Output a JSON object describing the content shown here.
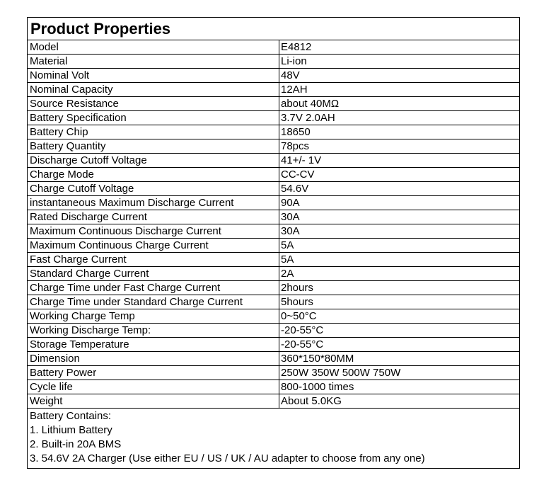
{
  "title": "Product Properties",
  "rows": [
    [
      "Model",
      "E4812"
    ],
    [
      "Material",
      "Li-ion"
    ],
    [
      "Nominal Volt",
      "48V"
    ],
    [
      "Nominal Capacity",
      "12AH"
    ],
    [
      "Source Resistance",
      "about 40MΩ"
    ],
    [
      "Battery Specification",
      "3.7V 2.0AH"
    ],
    [
      "Battery Chip",
      "18650"
    ],
    [
      "Battery Quantity",
      "78pcs"
    ],
    [
      "Discharge Cutoff Voltage",
      "41+/- 1V"
    ],
    [
      "Charge Mode",
      "CC-CV"
    ],
    [
      "Charge Cutoff Voltage",
      "54.6V"
    ],
    [
      "instantaneous Maximum Discharge Current",
      "90A"
    ],
    [
      "Rated Discharge Current",
      "30A"
    ],
    [
      "Maximum Continuous Discharge Current",
      "30A"
    ],
    [
      "Maximum Continuous Charge Current",
      "5A"
    ],
    [
      "Fast Charge Current",
      "5A"
    ],
    [
      "Standard Charge Current",
      "2A"
    ],
    [
      "Charge Time under Fast Charge Current",
      "2hours"
    ],
    [
      "Charge Time under Standard Charge Current",
      "5hours"
    ],
    [
      "Working Charge Temp",
      "0~50°C"
    ],
    [
      "Working Discharge Temp:",
      "-20-55°C"
    ],
    [
      "Storage Temperature",
      "-20-55°C"
    ],
    [
      "Dimension",
      "360*150*80MM"
    ],
    [
      "Battery Power",
      "250W 350W 500W 750W"
    ],
    [
      "Cycle life",
      "800-1000 times"
    ],
    [
      "Weight",
      "About 5.0KG"
    ]
  ],
  "contains": [
    "Battery Contains:",
    "1. Lithium Battery",
    "2. Built-in 20A BMS",
    "3. 54.6V 2A Charger (Use either EU / US / UK / AU adapter to choose from any one)"
  ]
}
